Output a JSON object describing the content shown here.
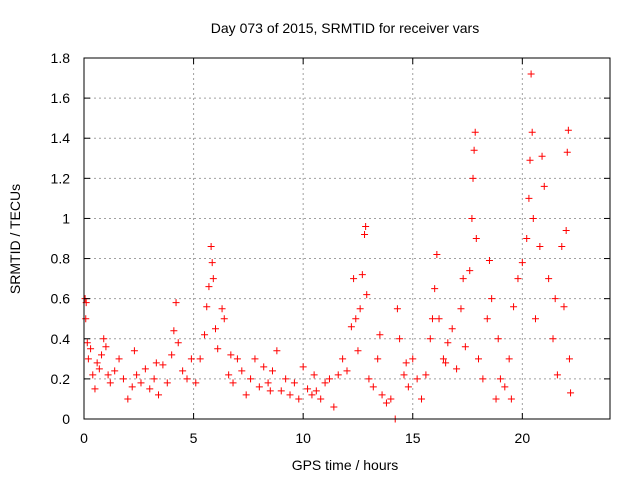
{
  "chart_data": {
    "type": "scatter",
    "title": "Day 073 of 2015, SRMTID for receiver vars",
    "xlabel": "GPS time / hours",
    "ylabel": "SRMTID / TECUs",
    "xlim": [
      0,
      24
    ],
    "ylim": [
      0,
      1.8
    ],
    "x_ticks": [
      {
        "value": 0,
        "label": "0"
      },
      {
        "value": 5,
        "label": "5"
      },
      {
        "value": 10,
        "label": "10"
      },
      {
        "value": 15,
        "label": "15"
      },
      {
        "value": 20,
        "label": "20"
      }
    ],
    "y_ticks": [
      {
        "value": 0,
        "label": "0"
      },
      {
        "value": 0.2,
        "label": "0.2"
      },
      {
        "value": 0.4,
        "label": "0.4"
      },
      {
        "value": 0.6,
        "label": "0.6"
      },
      {
        "value": 0.8,
        "label": "0.8"
      },
      {
        "value": 1.0,
        "label": "1"
      },
      {
        "value": 1.2,
        "label": "1.2"
      },
      {
        "value": 1.4,
        "label": "1.4"
      },
      {
        "value": 1.6,
        "label": "1.6"
      },
      {
        "value": 1.8,
        "label": "1.8"
      }
    ],
    "grid": true,
    "marker": "plus",
    "color": "#ff0000",
    "series": [
      {
        "name": "SRMTID",
        "points": [
          [
            0.05,
            0.6
          ],
          [
            0.08,
            0.5
          ],
          [
            0.1,
            0.58
          ],
          [
            0.15,
            0.38
          ],
          [
            0.2,
            0.3
          ],
          [
            0.3,
            0.35
          ],
          [
            0.4,
            0.22
          ],
          [
            0.5,
            0.15
          ],
          [
            0.6,
            0.28
          ],
          [
            0.7,
            0.25
          ],
          [
            0.8,
            0.32
          ],
          [
            0.9,
            0.4
          ],
          [
            1.0,
            0.36
          ],
          [
            1.1,
            0.22
          ],
          [
            1.2,
            0.18
          ],
          [
            1.4,
            0.24
          ],
          [
            1.6,
            0.3
          ],
          [
            1.8,
            0.2
          ],
          [
            2.0,
            0.1
          ],
          [
            2.2,
            0.16
          ],
          [
            2.4,
            0.22
          ],
          [
            2.6,
            0.18
          ],
          [
            2.8,
            0.25
          ],
          [
            3.0,
            0.15
          ],
          [
            3.2,
            0.2
          ],
          [
            3.4,
            0.12
          ],
          [
            3.6,
            0.27
          ],
          [
            3.8,
            0.18
          ],
          [
            4.0,
            0.32
          ],
          [
            4.1,
            0.44
          ],
          [
            4.2,
            0.58
          ],
          [
            4.3,
            0.38
          ],
          [
            4.5,
            0.24
          ],
          [
            4.7,
            0.2
          ],
          [
            4.9,
            0.3
          ],
          [
            5.1,
            0.18
          ],
          [
            5.3,
            0.3
          ],
          [
            5.5,
            0.42
          ],
          [
            5.6,
            0.56
          ],
          [
            5.7,
            0.66
          ],
          [
            5.8,
            0.86
          ],
          [
            5.85,
            0.78
          ],
          [
            5.9,
            0.7
          ],
          [
            6.0,
            0.45
          ],
          [
            6.1,
            0.35
          ],
          [
            6.3,
            0.55
          ],
          [
            6.4,
            0.5
          ],
          [
            6.6,
            0.22
          ],
          [
            6.8,
            0.18
          ],
          [
            7.0,
            0.3
          ],
          [
            7.2,
            0.24
          ],
          [
            7.4,
            0.12
          ],
          [
            7.6,
            0.2
          ],
          [
            7.8,
            0.3
          ],
          [
            8.0,
            0.16
          ],
          [
            8.2,
            0.26
          ],
          [
            8.4,
            0.18
          ],
          [
            8.6,
            0.24
          ],
          [
            8.8,
            0.34
          ],
          [
            9.0,
            0.14
          ],
          [
            9.2,
            0.2
          ],
          [
            9.4,
            0.12
          ],
          [
            9.6,
            0.18
          ],
          [
            9.8,
            0.1
          ],
          [
            10.0,
            0.26
          ],
          [
            10.2,
            0.15
          ],
          [
            10.4,
            0.12
          ],
          [
            10.6,
            0.14
          ],
          [
            10.8,
            0.1
          ],
          [
            11.0,
            0.18
          ],
          [
            11.2,
            0.2
          ],
          [
            11.4,
            0.06
          ],
          [
            11.6,
            0.22
          ],
          [
            11.8,
            0.3
          ],
          [
            12.0,
            0.24
          ],
          [
            12.2,
            0.46
          ],
          [
            12.3,
            0.7
          ],
          [
            12.4,
            0.5
          ],
          [
            12.5,
            0.34
          ],
          [
            12.6,
            0.55
          ],
          [
            12.7,
            0.72
          ],
          [
            12.8,
            0.92
          ],
          [
            12.85,
            0.96
          ],
          [
            12.9,
            0.62
          ],
          [
            13.0,
            0.2
          ],
          [
            13.2,
            0.16
          ],
          [
            13.4,
            0.3
          ],
          [
            13.6,
            0.12
          ],
          [
            13.8,
            0.08
          ],
          [
            14.0,
            0.1
          ],
          [
            14.2,
            0.0
          ],
          [
            14.3,
            0.55
          ],
          [
            14.4,
            0.4
          ],
          [
            14.6,
            0.22
          ],
          [
            14.8,
            0.16
          ],
          [
            15.0,
            0.3
          ],
          [
            15.2,
            0.2
          ],
          [
            15.4,
            0.1
          ],
          [
            15.6,
            0.22
          ],
          [
            15.8,
            0.4
          ],
          [
            16.0,
            0.65
          ],
          [
            16.1,
            0.82
          ],
          [
            16.2,
            0.5
          ],
          [
            16.4,
            0.3
          ],
          [
            16.6,
            0.38
          ],
          [
            16.8,
            0.45
          ],
          [
            17.0,
            0.25
          ],
          [
            17.2,
            0.55
          ],
          [
            17.4,
            0.36
          ],
          [
            17.6,
            0.74
          ],
          [
            17.7,
            1.0
          ],
          [
            17.75,
            1.2
          ],
          [
            17.8,
            1.34
          ],
          [
            17.85,
            1.43
          ],
          [
            17.9,
            0.9
          ],
          [
            18.0,
            0.3
          ],
          [
            18.2,
            0.2
          ],
          [
            18.4,
            0.5
          ],
          [
            18.5,
            0.79
          ],
          [
            18.6,
            0.6
          ],
          [
            18.8,
            0.1
          ],
          [
            19.0,
            0.2
          ],
          [
            19.2,
            0.16
          ],
          [
            19.4,
            0.3
          ],
          [
            19.6,
            0.56
          ],
          [
            19.8,
            0.7
          ],
          [
            20.0,
            0.78
          ],
          [
            20.2,
            0.9
          ],
          [
            20.3,
            1.1
          ],
          [
            20.35,
            1.29
          ],
          [
            20.4,
            1.72
          ],
          [
            20.45,
            1.43
          ],
          [
            20.5,
            1.0
          ],
          [
            20.6,
            0.5
          ],
          [
            20.8,
            0.86
          ],
          [
            20.9,
            1.31
          ],
          [
            21.0,
            1.16
          ],
          [
            21.2,
            0.7
          ],
          [
            21.4,
            0.4
          ],
          [
            21.6,
            0.22
          ],
          [
            21.8,
            0.86
          ],
          [
            21.9,
            0.56
          ],
          [
            22.0,
            0.94
          ],
          [
            22.05,
            1.33
          ],
          [
            22.1,
            1.44
          ],
          [
            22.15,
            0.3
          ],
          [
            22.2,
            0.13
          ],
          [
            19.5,
            0.1
          ],
          [
            16.5,
            0.28
          ],
          [
            15.9,
            0.5
          ],
          [
            2.3,
            0.34
          ],
          [
            3.3,
            0.28
          ],
          [
            6.7,
            0.32
          ],
          [
            8.5,
            0.14
          ],
          [
            10.5,
            0.22
          ],
          [
            13.5,
            0.42
          ],
          [
            14.7,
            0.28
          ],
          [
            17.3,
            0.7
          ],
          [
            18.9,
            0.4
          ],
          [
            21.5,
            0.6
          ]
        ]
      }
    ]
  }
}
